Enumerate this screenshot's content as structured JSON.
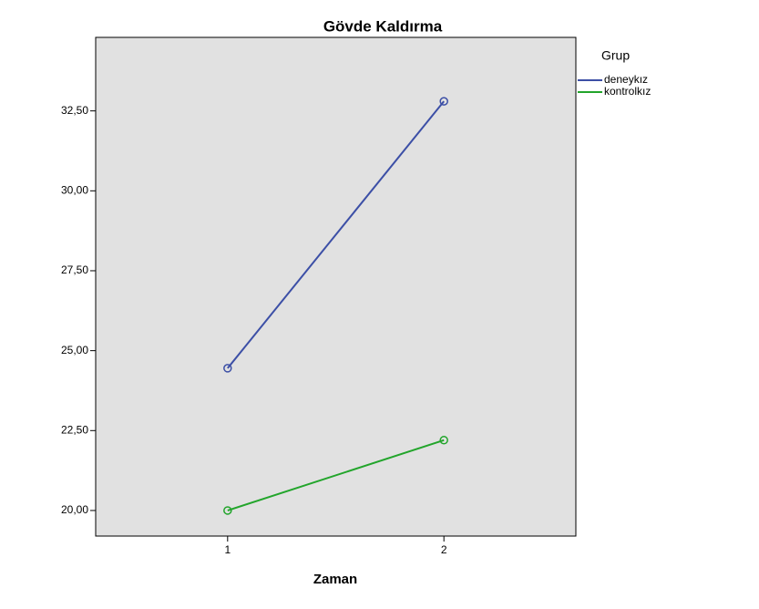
{
  "chart_data": {
    "type": "line",
    "title": "Gövde Kaldırma",
    "x_label": "Zaman",
    "x": [
      1,
      2
    ],
    "series": [
      {
        "name": "deneykız",
        "color": "#3c4fa6",
        "values": [
          24.45,
          32.8
        ]
      },
      {
        "name": "kontrolkız",
        "color": "#22a52b",
        "values": [
          20.0,
          22.2
        ]
      }
    ],
    "xlim": [
      0.39,
      2.61
    ],
    "xticks": [
      1,
      2
    ],
    "ylim": [
      19.2,
      34.8
    ],
    "yticks": [
      {
        "value": 20,
        "label": "20,00"
      },
      {
        "value": 22.5,
        "label": "22,50"
      },
      {
        "value": 25,
        "label": "25,00"
      },
      {
        "value": 27.5,
        "label": "27,50"
      },
      {
        "value": 30,
        "label": "30,00"
      },
      {
        "value": 32.5,
        "label": "32,50"
      }
    ],
    "legend_title": "Grup",
    "legend": "right",
    "grid": false,
    "markers": "circle"
  }
}
